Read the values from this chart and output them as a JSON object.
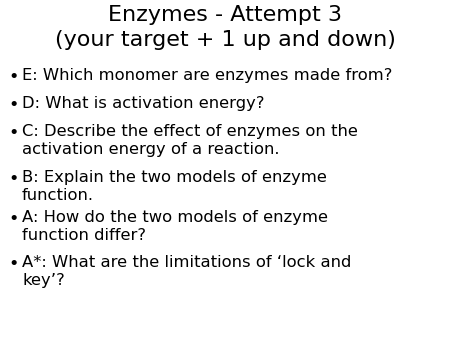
{
  "title_line1": "Enzymes - Attempt 3",
  "title_line2": "(your target + 1 up and down)",
  "bullet_items": [
    "E: Which monomer are enzymes made from?",
    "D: What is activation energy?",
    "C: Describe the effect of enzymes on the\nactivation energy of a reaction.",
    "B: Explain the two models of enzyme\nfunction.",
    "A: How do the two models of enzyme\nfunction differ?",
    "A*: What are the limitations of ‘lock and\nkey’?"
  ],
  "background_color": "#ffffff",
  "text_color": "#000000",
  "title_fontsize": 16,
  "bullet_fontsize": 11.8,
  "font_family": "Comic Sans MS"
}
